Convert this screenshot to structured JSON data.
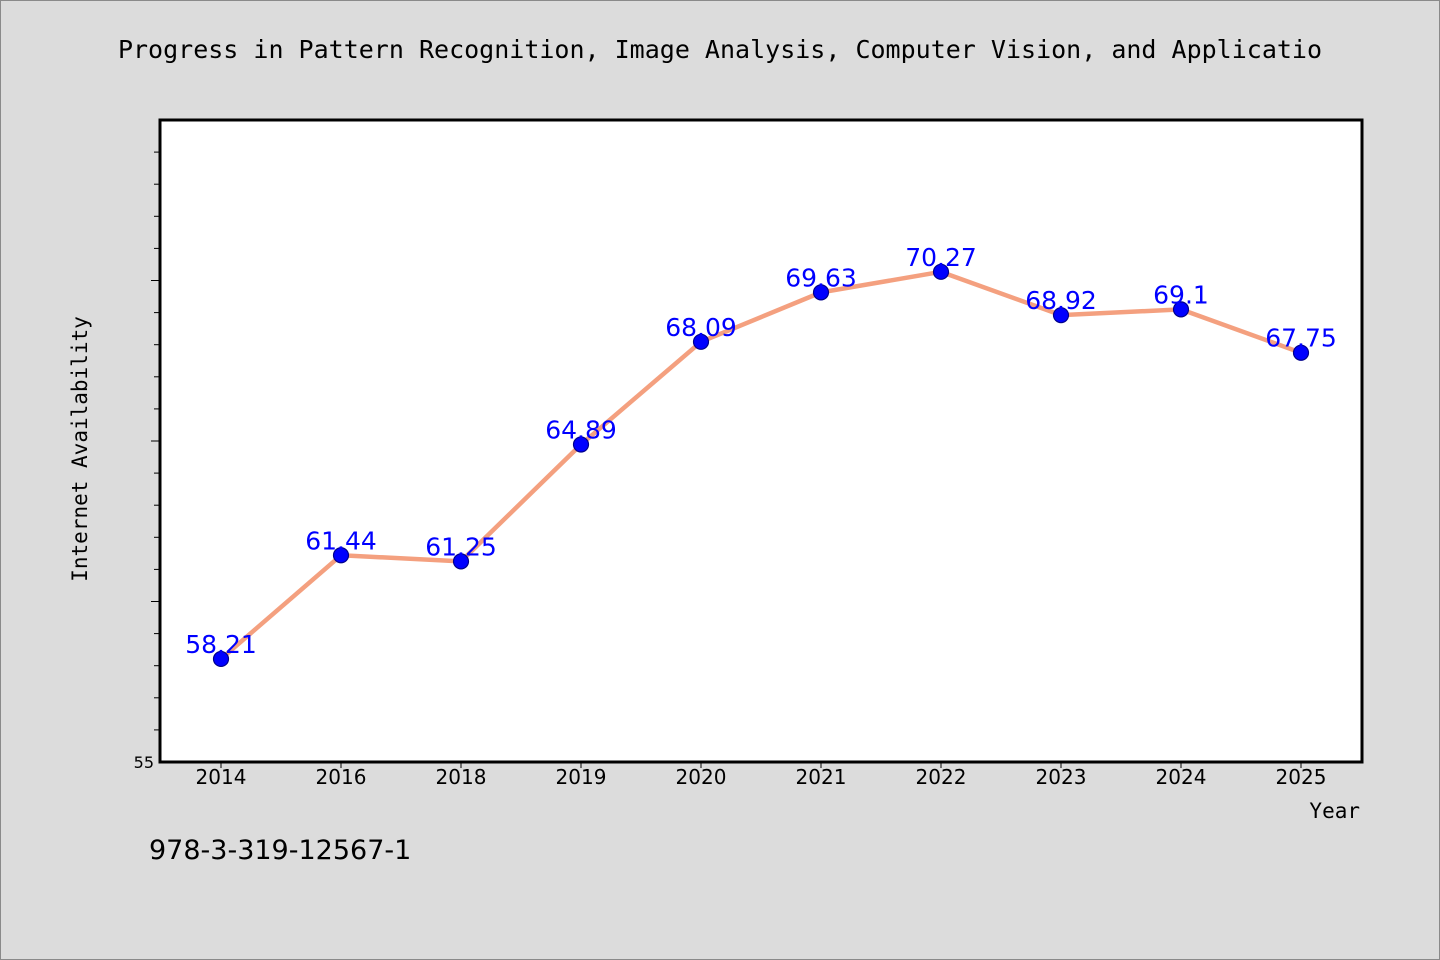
{
  "chart_data": {
    "type": "line",
    "title": "Progress in Pattern Recognition, Image Analysis, Computer Vision, and Applicatio",
    "xlabel": "Year",
    "ylabel": "Internet Availability",
    "categories": [
      "2014",
      "2016",
      "2018",
      "2019",
      "2020",
      "2021",
      "2022",
      "2023",
      "2024",
      "2025"
    ],
    "series": [
      {
        "values": [
          58.21,
          61.44,
          61.25,
          64.89,
          68.09,
          69.63,
          70.27,
          68.92,
          69.1,
          67.75
        ]
      }
    ],
    "data_labels": [
      "58.21",
      "61.44",
      "61.25",
      "64.89",
      "68.09",
      "69.63",
      "70.27",
      "68.92",
      "69.1",
      "67.75"
    ],
    "y_tick_labels": [
      {
        "value": 55,
        "label": "55"
      }
    ],
    "ylim": [
      55,
      75
    ],
    "grid": false,
    "colors": {
      "line": "#f4a07f",
      "marker": "#0000ff",
      "marker_edge": "#00008b",
      "data_label": "#0000ff",
      "background": "#dcdcdc",
      "plot_background": "#ffffff"
    }
  },
  "footer": {
    "identifier": "978-3-319-12567-1"
  }
}
